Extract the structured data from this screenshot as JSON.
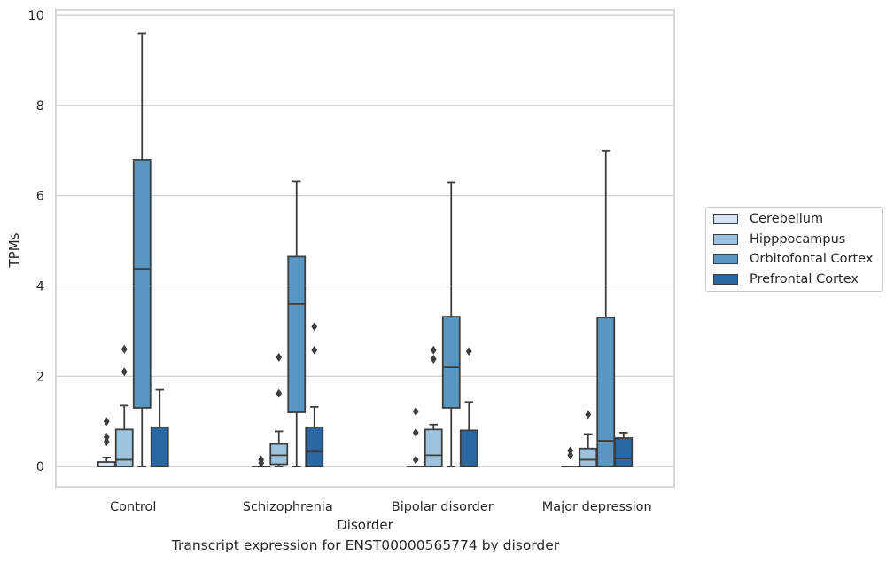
{
  "chart_data": {
    "type": "box",
    "title": "",
    "caption": "Transcript expression for ENST00000565774 by disorder",
    "xlabel": "Disorder",
    "ylabel": "TPMs",
    "ylim": [
      -0.45,
      10.12
    ],
    "yticks": [
      0,
      2,
      4,
      6,
      8,
      10
    ],
    "grid": "horizontal",
    "legend_position": "right",
    "categories": [
      "Control",
      "Schizophrenia",
      "Bipolar disorder",
      "Major depression"
    ],
    "series": [
      {
        "name": "Cerebellum",
        "color": "#d6e4f2",
        "boxes": [
          {
            "min": 0,
            "q1": 0,
            "median": 0,
            "q3": 0.1,
            "max": 0.2,
            "outliers": [
              0.55,
              0.65,
              1.0
            ]
          },
          {
            "min": 0,
            "q1": 0,
            "median": 0,
            "q3": 0,
            "max": 0,
            "outliers": [
              0.08,
              0.15
            ]
          },
          {
            "min": 0,
            "q1": 0,
            "median": 0,
            "q3": 0,
            "max": 0,
            "outliers": [
              0.15,
              0.75,
              1.22
            ]
          },
          {
            "min": 0,
            "q1": 0,
            "median": 0,
            "q3": 0,
            "max": 0,
            "outliers": [
              0.25,
              0.35
            ]
          }
        ]
      },
      {
        "name": "Hipppocampus",
        "color": "#9dc3de",
        "boxes": [
          {
            "min": 0,
            "q1": 0,
            "median": 0.15,
            "q3": 0.82,
            "max": 1.35,
            "outliers": [
              2.1,
              2.6
            ]
          },
          {
            "min": 0,
            "q1": 0.05,
            "median": 0.25,
            "q3": 0.5,
            "max": 0.78,
            "outliers": [
              1.62,
              2.42
            ]
          },
          {
            "min": 0,
            "q1": 0,
            "median": 0.25,
            "q3": 0.82,
            "max": 0.93,
            "outliers": [
              2.38,
              2.58
            ]
          },
          {
            "min": 0,
            "q1": 0,
            "median": 0.15,
            "q3": 0.4,
            "max": 0.72,
            "outliers": [
              1.15
            ]
          }
        ]
      },
      {
        "name": "Orbitofontal Cortex",
        "color": "#5996c0",
        "boxes": [
          {
            "min": 0,
            "q1": 1.3,
            "median": 4.38,
            "q3": 6.8,
            "max": 9.6,
            "outliers": []
          },
          {
            "min": 0,
            "q1": 1.2,
            "median": 3.6,
            "q3": 4.65,
            "max": 6.32,
            "outliers": []
          },
          {
            "min": 0,
            "q1": 1.3,
            "median": 2.2,
            "q3": 3.32,
            "max": 6.3,
            "outliers": []
          },
          {
            "min": 0,
            "q1": 0,
            "median": 0.57,
            "q3": 3.3,
            "max": 7.0,
            "outliers": []
          }
        ]
      },
      {
        "name": "Prefrontal Cortex",
        "color": "#2a67a5",
        "boxes": [
          {
            "min": 0,
            "q1": 0,
            "median": 0,
            "q3": 0.87,
            "max": 1.7,
            "outliers": []
          },
          {
            "min": 0,
            "q1": 0,
            "median": 0.33,
            "q3": 0.87,
            "max": 1.32,
            "outliers": [
              2.58,
              3.1
            ]
          },
          {
            "min": 0,
            "q1": 0,
            "median": 0,
            "q3": 0.8,
            "max": 1.43,
            "outliers": [
              2.55
            ]
          },
          {
            "min": 0,
            "q1": 0,
            "median": 0.18,
            "q3": 0.63,
            "max": 0.75,
            "outliers": []
          }
        ]
      }
    ]
  }
}
